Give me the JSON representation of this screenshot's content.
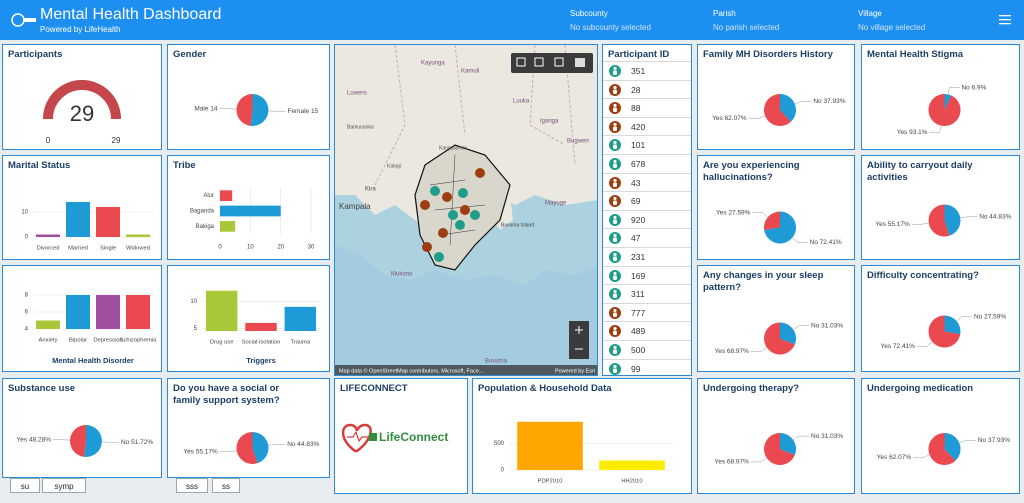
{
  "header": {
    "title": "Mental Health Dashboard",
    "subtitle": "Powered by LifeHealth"
  },
  "filters": [
    {
      "label": "Subcounty",
      "value": "No subcounty selected"
    },
    {
      "label": "Parish",
      "value": "No parish selected"
    },
    {
      "label": "Village",
      "value": "No village selected"
    }
  ],
  "participant_list": {
    "title": "Participant ID",
    "ids": [
      {
        "id": 351,
        "color": "#1f9d8a"
      },
      {
        "id": 28,
        "color": "#9c3d12"
      },
      {
        "id": 88,
        "color": "#9c3d12"
      },
      {
        "id": 420,
        "color": "#9c3d12"
      },
      {
        "id": 101,
        "color": "#1f9d8a"
      },
      {
        "id": 678,
        "color": "#1f9d8a"
      },
      {
        "id": 43,
        "color": "#9c3d12"
      },
      {
        "id": 69,
        "color": "#9c3d12"
      },
      {
        "id": 920,
        "color": "#1f9d8a"
      },
      {
        "id": 47,
        "color": "#1f9d8a"
      },
      {
        "id": 231,
        "color": "#1f9d8a"
      },
      {
        "id": 169,
        "color": "#1f9d8a"
      },
      {
        "id": 311,
        "color": "#1f9d8a"
      },
      {
        "id": 777,
        "color": "#9c3d12"
      },
      {
        "id": 489,
        "color": "#9c3d12"
      },
      {
        "id": 500,
        "color": "#1f9d8a"
      },
      {
        "id": 99,
        "color": "#1f9d8a"
      }
    ]
  },
  "map": {
    "labels": [
      "Kayunga",
      "Kamuli",
      "Luwero",
      "Luuka",
      "Bamunanka",
      "Iganga",
      "Bugweri",
      "Kampala",
      "Kira",
      "Mayuge",
      "Buvuma Island",
      "Mukono",
      "Buvuma",
      "Kalagi",
      "Kangulumira"
    ],
    "attribution": "Map data © OpenStreetMap contributors, Microsoft, Face...",
    "powered": "Powered by Esri"
  },
  "lifeconnect": {
    "title": "LIFECONNECT",
    "logo": "LifeConnect"
  },
  "tabs_left": [
    "su",
    "symp"
  ],
  "tabs_right": [
    "sss",
    "ss"
  ],
  "chart_data": [
    {
      "type": "gauge",
      "title": "Participants",
      "value": 29,
      "min": 0,
      "max": 29,
      "color": "#c5474b"
    },
    {
      "type": "pie",
      "title": "Gender",
      "categories": [
        "Male",
        "Female"
      ],
      "values": [
        14,
        15
      ],
      "value_labels": [
        "Male 14",
        "Female 15"
      ],
      "colors": [
        "#e9494f",
        "#1e9bd7"
      ]
    },
    {
      "type": "bar",
      "title": "Marital Status",
      "categories": [
        "Divorced",
        "Married",
        "Single",
        "Widowed"
      ],
      "values": [
        1,
        14,
        12,
        1
      ],
      "colors": [
        "#a24ea0",
        "#1e9bd7",
        "#e9494f",
        "#a8c839"
      ],
      "ylim": [
        0,
        16
      ],
      "yticks": [
        0,
        10
      ],
      "grid": true
    },
    {
      "type": "hbar",
      "title": "Tribe",
      "categories": [
        "Alur",
        "Baganda",
        "Bakiga"
      ],
      "values": [
        4,
        20,
        5
      ],
      "colors": [
        "#e9494f",
        "#1e9bd7",
        "#a8c839"
      ],
      "xlim": [
        0,
        30
      ],
      "xticks": [
        0,
        10,
        20,
        30
      ],
      "grid": true
    },
    {
      "type": "bar",
      "xlabel": "Mental Health Disorder",
      "categories": [
        "Anxiety",
        "Bipolar",
        "Depression",
        "Schizophrenia"
      ],
      "values": [
        5,
        8,
        8,
        8
      ],
      "colors": [
        "#a8c839",
        "#1e9bd7",
        "#a24ea0",
        "#e9494f"
      ],
      "ylim": [
        4,
        9
      ],
      "yticks": [
        4,
        6,
        8
      ],
      "grid": true
    },
    {
      "type": "bar",
      "xlabel": "Triggers",
      "categories": [
        "Drug use",
        "Social isolation",
        "Trauma"
      ],
      "values": [
        12,
        6,
        9
      ],
      "colors": [
        "#a8c839",
        "#e9494f",
        "#1e9bd7"
      ],
      "ylim": [
        4.5,
        14
      ],
      "yticks": [
        5,
        10
      ],
      "grid": true
    },
    {
      "type": "pie",
      "title": "Substance use",
      "categories": [
        "Yes",
        "No"
      ],
      "values": [
        48.28,
        51.72
      ],
      "value_labels": [
        "Yes 48.28%",
        "No 51.72%"
      ],
      "colors": [
        "#e9494f",
        "#1e9bd7"
      ]
    },
    {
      "type": "pie",
      "title": "Do you have a social or family support system?",
      "categories": [
        "Yes",
        "No"
      ],
      "values": [
        55.17,
        44.83
      ],
      "value_labels": [
        "Yes 55.17%",
        "No 44.83%"
      ],
      "colors": [
        "#e9494f",
        "#1e9bd7"
      ]
    },
    {
      "type": "bar",
      "title": "Population & Household Data",
      "categories": [
        "PDP2010",
        "HH2010"
      ],
      "values": [
        910,
        180
      ],
      "colors": [
        "#ffa600",
        "#ffec00"
      ],
      "ylim": [
        0,
        1000
      ],
      "yticks": [
        0,
        500
      ],
      "grid": true
    },
    {
      "type": "pie",
      "title": "Family MH Disorders History",
      "categories": [
        "Yes",
        "No"
      ],
      "values": [
        62.07,
        37.93
      ],
      "value_labels": [
        "Yes 62.07%",
        "No 37.93%"
      ],
      "colors": [
        "#e9494f",
        "#1e9bd7"
      ]
    },
    {
      "type": "pie",
      "title": "Mental Health Stigma",
      "categories": [
        "Yes",
        "No"
      ],
      "values": [
        93.1,
        6.9
      ],
      "value_labels": [
        "Yes 93.1%",
        "No 6.9%"
      ],
      "colors": [
        "#e9494f",
        "#1e9bd7"
      ]
    },
    {
      "type": "pie",
      "title": "Are you experiencing hallucinations?",
      "categories": [
        "Yes",
        "No"
      ],
      "values": [
        27.59,
        72.41
      ],
      "value_labels": [
        "Yes 27.59%",
        "No 72.41%"
      ],
      "colors": [
        "#e9494f",
        "#1e9bd7"
      ]
    },
    {
      "type": "pie",
      "title": "Ability to carryout daily activities",
      "categories": [
        "Yes",
        "No"
      ],
      "values": [
        55.17,
        44.83
      ],
      "value_labels": [
        "Yes 55.17%",
        "No 44.83%"
      ],
      "colors": [
        "#e9494f",
        "#1e9bd7"
      ]
    },
    {
      "type": "pie",
      "title": "Any changes in your sleep pattern?",
      "categories": [
        "Yes",
        "No"
      ],
      "values": [
        68.97,
        31.03
      ],
      "value_labels": [
        "Yes 68.97%",
        "No 31.03%"
      ],
      "colors": [
        "#e9494f",
        "#1e9bd7"
      ]
    },
    {
      "type": "pie",
      "title": "Difficulty concentrating?",
      "categories": [
        "Yes",
        "No"
      ],
      "values": [
        72.41,
        27.59
      ],
      "value_labels": [
        "Yes 72.41%",
        "No 27.59%"
      ],
      "colors": [
        "#e9494f",
        "#1e9bd7"
      ]
    },
    {
      "type": "pie",
      "title": "Undergoing therapy?",
      "categories": [
        "Yes",
        "No"
      ],
      "values": [
        68.97,
        31.03
      ],
      "value_labels": [
        "Yes 68.97%",
        "No 31.03%"
      ],
      "colors": [
        "#e9494f",
        "#1e9bd7"
      ]
    },
    {
      "type": "pie",
      "title": "Undergoing medication",
      "categories": [
        "Yes",
        "No"
      ],
      "values": [
        62.07,
        37.93
      ],
      "value_labels": [
        "Yes 62.07%",
        "No 37.93%"
      ],
      "colors": [
        "#e9494f",
        "#1e9bd7"
      ]
    }
  ]
}
